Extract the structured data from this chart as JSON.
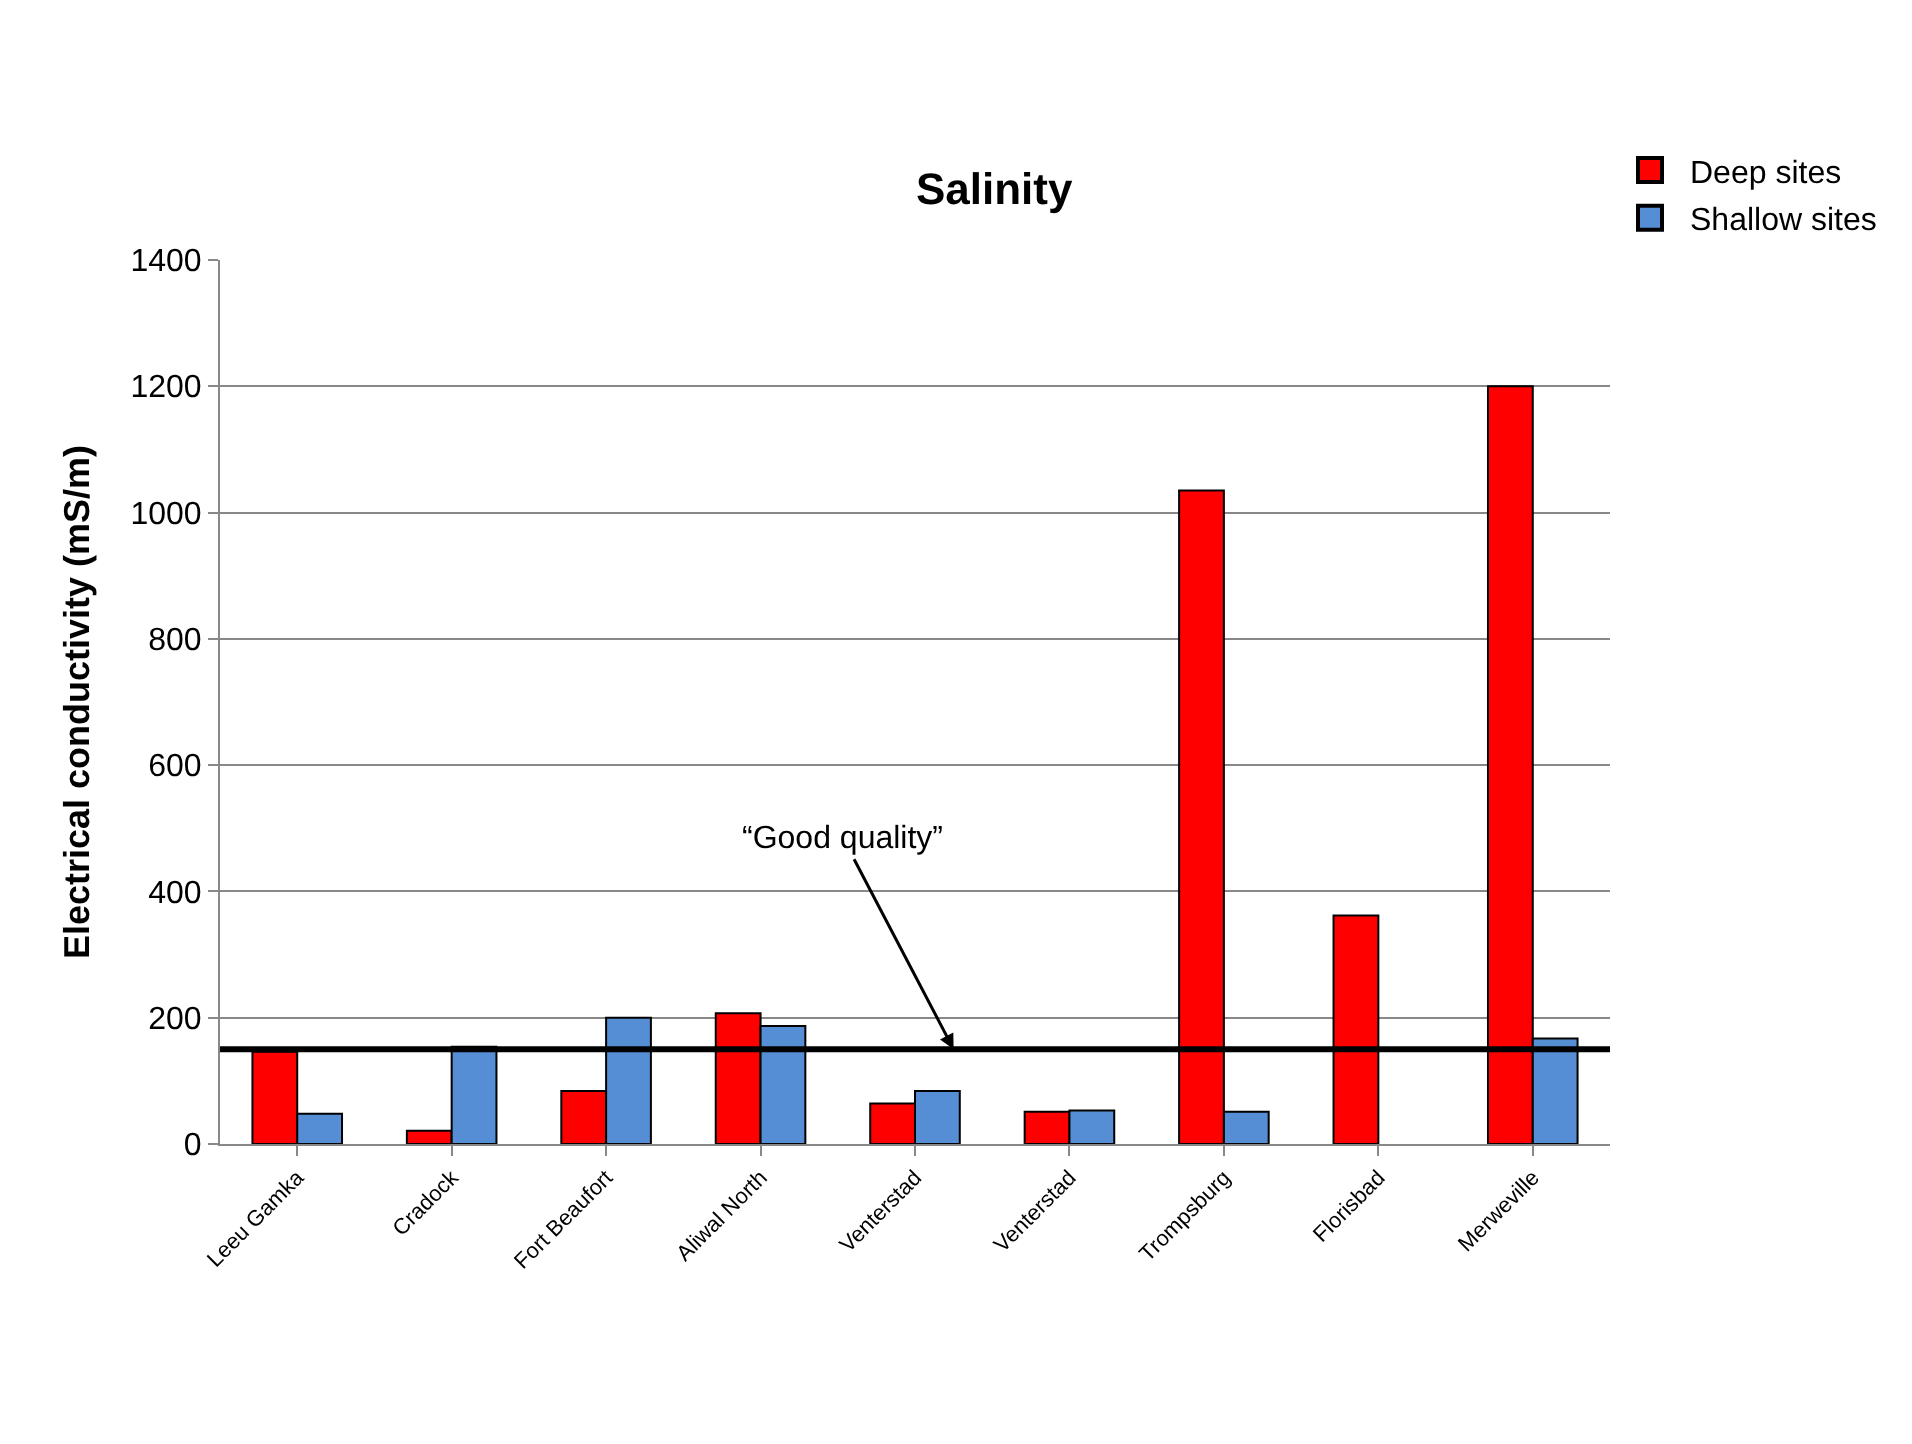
{
  "chart_data": {
    "type": "bar",
    "title": "Salinity",
    "ylabel": "Electrical conductivity (mS/m)",
    "categories": [
      "Leeu Gamka",
      "Cradock",
      "Fort Beaufort",
      "Aliwal North",
      "Venterstad",
      "Venterstad",
      "Trompsburg",
      "Florisbad",
      "Merweville"
    ],
    "series": [
      {
        "name": "Deep sites",
        "color": "#ff0000",
        "values": [
          146,
          21,
          84,
          207,
          64,
          51,
          1035,
          362,
          1200
        ]
      },
      {
        "name": "Shallow sites",
        "color": "#558ed5",
        "values": [
          48,
          154,
          200,
          187,
          84,
          53,
          51,
          null,
          167
        ]
      }
    ],
    "ylim": [
      0,
      1400
    ],
    "yticks": [
      0,
      200,
      400,
      600,
      800,
      1000,
      1200,
      1400
    ],
    "grid": "y",
    "legend": "top right",
    "ref_lines": [
      {
        "axis": "y",
        "value": 150,
        "label": "“Good quality”",
        "color": "#000000"
      }
    ]
  }
}
